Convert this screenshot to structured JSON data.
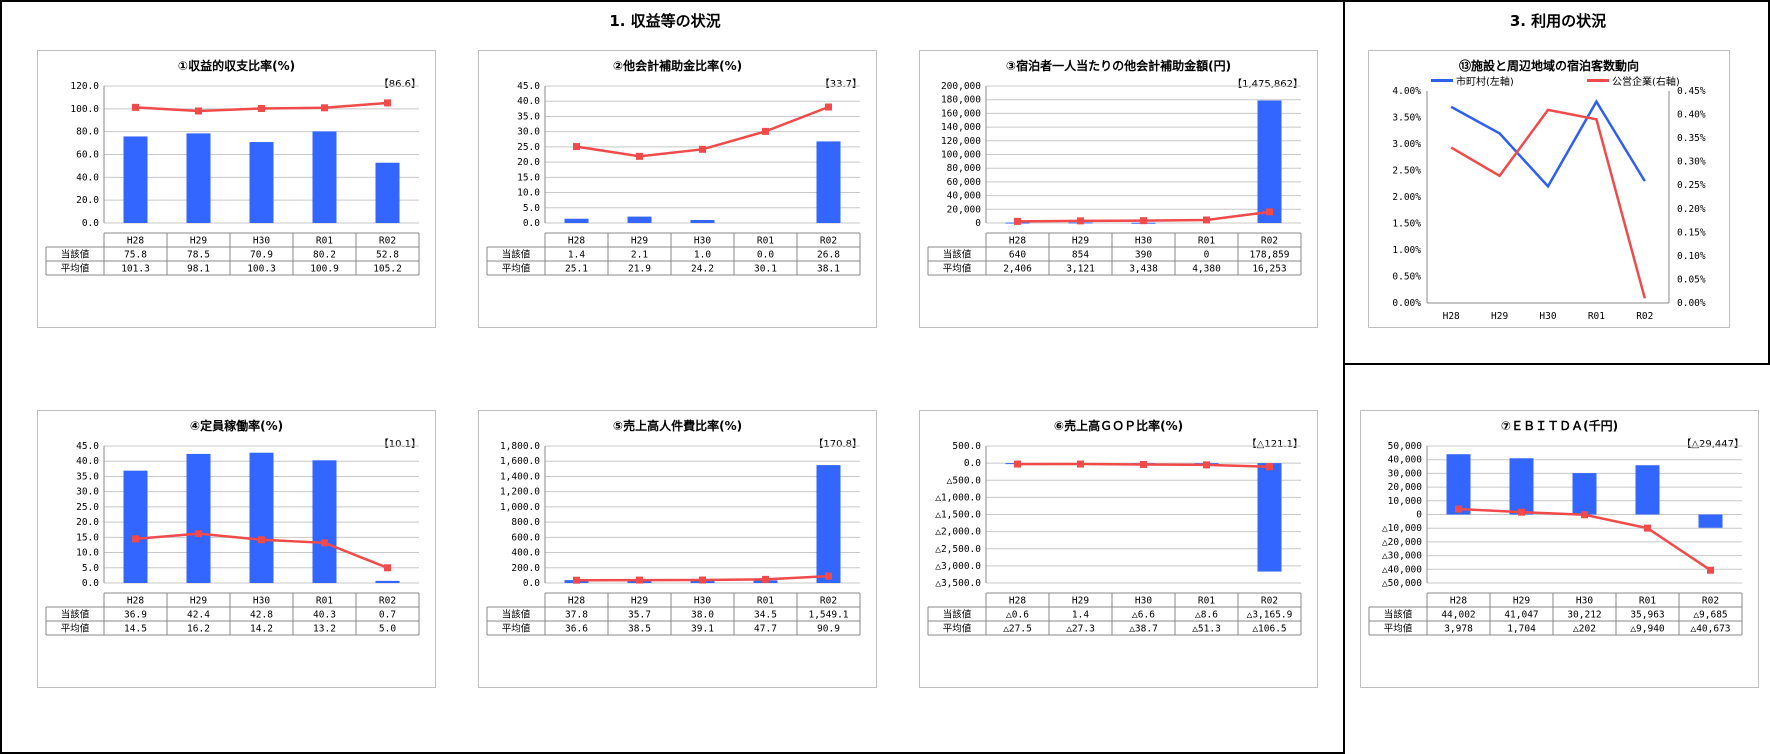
{
  "sections": {
    "revenue_title": "1. 収益等の状況",
    "usage_title": "3. 利用の状況"
  },
  "colors": {
    "bar": "#3366ff",
    "line": "#f04a4a",
    "line_blue": "#2f5ff0",
    "grid": "#c8c8c8"
  },
  "table_labels": {
    "current": "当該値",
    "average": "平均値"
  },
  "chart_data": [
    {
      "type": "bar",
      "title": "①収益的収支比率(%)",
      "badge": "【86.6】",
      "categories": [
        "H28",
        "H29",
        "H30",
        "R01",
        "R02"
      ],
      "ylim": [
        0,
        120
      ],
      "yticks": [
        0,
        20,
        40,
        60,
        80,
        100,
        120
      ],
      "ytick_labels": [
        "0.0",
        "20.0",
        "40.0",
        "60.0",
        "80.0",
        "100.0",
        "120.0"
      ],
      "series": [
        {
          "name": "当該値",
          "kind": "bar",
          "values": [
            75.8,
            78.5,
            70.9,
            80.2,
            52.8
          ]
        },
        {
          "name": "平均値",
          "kind": "line",
          "values": [
            101.3,
            98.1,
            100.3,
            100.9,
            105.2
          ]
        }
      ],
      "table": {
        "current": [
          "75.8",
          "78.5",
          "70.9",
          "80.2",
          "52.8"
        ],
        "average": [
          "101.3",
          "98.1",
          "100.3",
          "100.9",
          "105.2"
        ]
      }
    },
    {
      "type": "bar",
      "title": "②他会計補助金比率(%)",
      "badge": "【33.7】",
      "categories": [
        "H28",
        "H29",
        "H30",
        "R01",
        "R02"
      ],
      "ylim": [
        0,
        45
      ],
      "yticks": [
        0,
        5,
        10,
        15,
        20,
        25,
        30,
        35,
        40,
        45
      ],
      "ytick_labels": [
        "0.0",
        "5.0",
        "10.0",
        "15.0",
        "20.0",
        "25.0",
        "30.0",
        "35.0",
        "40.0",
        "45.0"
      ],
      "series": [
        {
          "name": "当該値",
          "kind": "bar",
          "values": [
            1.4,
            2.1,
            1.0,
            0.0,
            26.8
          ]
        },
        {
          "name": "平均値",
          "kind": "line",
          "values": [
            25.1,
            21.9,
            24.2,
            30.1,
            38.1
          ]
        }
      ],
      "table": {
        "current": [
          "1.4",
          "2.1",
          "1.0",
          "0.0",
          "26.8"
        ],
        "average": [
          "25.1",
          "21.9",
          "24.2",
          "30.1",
          "38.1"
        ]
      }
    },
    {
      "type": "bar",
      "title": "③宿泊者一人当たりの他会計補助金額(円)",
      "badge": "【1,475,862】",
      "categories": [
        "H28",
        "H29",
        "H30",
        "R01",
        "R02"
      ],
      "ylim": [
        0,
        200000
      ],
      "yticks": [
        0,
        20000,
        40000,
        60000,
        80000,
        100000,
        120000,
        140000,
        160000,
        180000,
        200000
      ],
      "ytick_labels": [
        "0",
        "20,000",
        "40,000",
        "60,000",
        "80,000",
        "100,000",
        "120,000",
        "140,000",
        "160,000",
        "180,000",
        "200,000"
      ],
      "series": [
        {
          "name": "当該値",
          "kind": "bar",
          "values": [
            640,
            854,
            390,
            0,
            178859
          ]
        },
        {
          "name": "平均値",
          "kind": "line",
          "values": [
            2406,
            3121,
            3438,
            4380,
            16253
          ]
        }
      ],
      "table": {
        "current": [
          "640",
          "854",
          "390",
          "0",
          "178,859"
        ],
        "average": [
          "2,406",
          "3,121",
          "3,438",
          "4,380",
          "16,253"
        ]
      }
    },
    {
      "type": "line",
      "title": "⑬施設と周辺地域の宿泊客数動向",
      "categories": [
        "H28",
        "H29",
        "H30",
        "R01",
        "R02"
      ],
      "ylim": [
        0,
        0.04
      ],
      "yticks": [
        0,
        0.005,
        0.01,
        0.015,
        0.02,
        0.025,
        0.03,
        0.035,
        0.04
      ],
      "ytick_labels": [
        "0.00%",
        "0.50%",
        "1.00%",
        "1.50%",
        "2.00%",
        "2.50%",
        "3.00%",
        "3.50%",
        "4.00%"
      ],
      "y2lim": [
        0,
        0.0045
      ],
      "y2ticks": [
        0,
        0.0005,
        0.001,
        0.0015,
        0.002,
        0.0025,
        0.003,
        0.0035,
        0.004,
        0.0045
      ],
      "y2tick_labels": [
        "0.00%",
        "0.05%",
        "0.10%",
        "0.15%",
        "0.20%",
        "0.25%",
        "0.30%",
        "0.35%",
        "0.40%",
        "0.45%"
      ],
      "series": [
        {
          "name": "市町村(左軸)",
          "axis": "left",
          "values": [
            0.037,
            0.032,
            0.022,
            0.038,
            0.023
          ]
        },
        {
          "name": "公営企業(右軸)",
          "axis": "right",
          "values": [
            0.0033,
            0.0027,
            0.0041,
            0.0039,
            0.0001
          ]
        }
      ]
    },
    {
      "type": "bar",
      "title": "④定員稼働率(%)",
      "badge": "【10.1】",
      "categories": [
        "H28",
        "H29",
        "H30",
        "R01",
        "R02"
      ],
      "ylim": [
        0,
        45
      ],
      "yticks": [
        0,
        5,
        10,
        15,
        20,
        25,
        30,
        35,
        40,
        45
      ],
      "ytick_labels": [
        "0.0",
        "5.0",
        "10.0",
        "15.0",
        "20.0",
        "25.0",
        "30.0",
        "35.0",
        "40.0",
        "45.0"
      ],
      "series": [
        {
          "name": "当該値",
          "kind": "bar",
          "values": [
            36.9,
            42.4,
            42.8,
            40.3,
            0.7
          ]
        },
        {
          "name": "平均値",
          "kind": "line",
          "values": [
            14.5,
            16.2,
            14.2,
            13.2,
            5.0
          ]
        }
      ],
      "table": {
        "current": [
          "36.9",
          "42.4",
          "42.8",
          "40.3",
          "0.7"
        ],
        "average": [
          "14.5",
          "16.2",
          "14.2",
          "13.2",
          "5.0"
        ]
      }
    },
    {
      "type": "bar",
      "title": "⑤売上高人件費比率(%)",
      "badge": "【170.8】",
      "categories": [
        "H28",
        "H29",
        "H30",
        "R01",
        "R02"
      ],
      "ylim": [
        0,
        1800
      ],
      "yticks": [
        0,
        200,
        400,
        600,
        800,
        1000,
        1200,
        1400,
        1600,
        1800
      ],
      "ytick_labels": [
        "0.0",
        "200.0",
        "400.0",
        "600.0",
        "800.0",
        "1,000.0",
        "1,200.0",
        "1,400.0",
        "1,600.0",
        "1,800.0"
      ],
      "series": [
        {
          "name": "当該値",
          "kind": "bar",
          "values": [
            37.8,
            35.7,
            38.0,
            34.5,
            1549.1
          ]
        },
        {
          "name": "平均値",
          "kind": "line",
          "values": [
            36.6,
            38.5,
            39.1,
            47.7,
            90.9
          ]
        }
      ],
      "table": {
        "current": [
          "37.8",
          "35.7",
          "38.0",
          "34.5",
          "1,549.1"
        ],
        "average": [
          "36.6",
          "38.5",
          "39.1",
          "47.7",
          "90.9"
        ]
      }
    },
    {
      "type": "bar",
      "title": "⑥売上高ＧＯＰ比率(%)",
      "badge": "【△121.1】",
      "categories": [
        "H28",
        "H29",
        "H30",
        "R01",
        "R02"
      ],
      "ylim": [
        -3500,
        500
      ],
      "yticks": [
        -3500,
        -3000,
        -2500,
        -2000,
        -1500,
        -1000,
        -500,
        0,
        500
      ],
      "ytick_labels": [
        "△3,500.0",
        "△3,000.0",
        "△2,500.0",
        "△2,000.0",
        "△1,500.0",
        "△1,000.0",
        "△500.0",
        "0.0",
        "500.0"
      ],
      "series": [
        {
          "name": "当該値",
          "kind": "bar",
          "values": [
            -0.6,
            1.4,
            -6.6,
            -8.6,
            -3165.9
          ]
        },
        {
          "name": "平均値",
          "kind": "line",
          "values": [
            -27.5,
            -27.3,
            -38.7,
            -51.3,
            -106.5
          ]
        }
      ],
      "table": {
        "current": [
          "△0.6",
          "1.4",
          "△6.6",
          "△8.6",
          "△3,165.9"
        ],
        "average": [
          "△27.5",
          "△27.3",
          "△38.7",
          "△51.3",
          "△106.5"
        ]
      }
    },
    {
      "type": "bar",
      "title": "⑦ＥＢＩＴＤＡ(千円)",
      "badge": "【△29,447】",
      "categories": [
        "H28",
        "H29",
        "H30",
        "R01",
        "R02"
      ],
      "ylim": [
        -50000,
        50000
      ],
      "yticks": [
        -50000,
        -40000,
        -30000,
        -20000,
        -10000,
        0,
        10000,
        20000,
        30000,
        40000,
        50000
      ],
      "ytick_labels": [
        "△50,000",
        "△40,000",
        "△30,000",
        "△20,000",
        "△10,000",
        "0",
        "10,000",
        "20,000",
        "30,000",
        "40,000",
        "50,000"
      ],
      "series": [
        {
          "name": "当該値",
          "kind": "bar",
          "values": [
            44002,
            41047,
            30212,
            35963,
            -9685
          ]
        },
        {
          "name": "平均値",
          "kind": "line",
          "values": [
            3978,
            1704,
            -202,
            -9940,
            -40673
          ]
        }
      ],
      "table": {
        "current": [
          "44,002",
          "41,047",
          "30,212",
          "35,963",
          "△9,685"
        ],
        "average": [
          "3,978",
          "1,704",
          "△202",
          "△9,940",
          "△40,673"
        ]
      }
    }
  ]
}
